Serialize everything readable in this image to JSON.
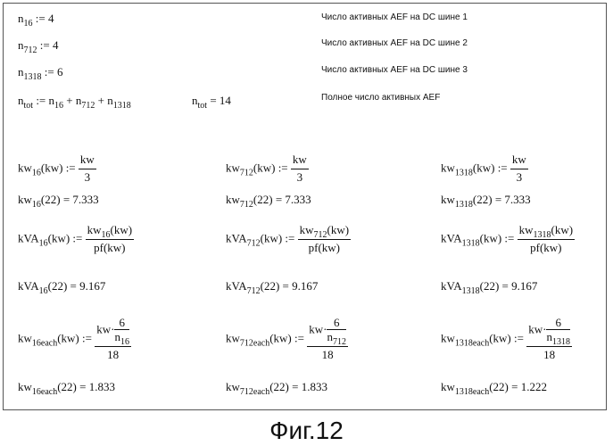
{
  "counts": {
    "n16": {
      "sym": "n",
      "sub": "16",
      "op": " := ",
      "val": "4",
      "note": "Число активных AEF на DC шине 1"
    },
    "n712": {
      "sym": "n",
      "sub": "712",
      "op": " := ",
      "val": "4",
      "note": "Число активных AEF на DC шине 2"
    },
    "n1318": {
      "sym": "n",
      "sub": "1318",
      "op": " := ",
      "val": "6",
      "note": "Число активных AEF на DC шине 3"
    },
    "ntot": {
      "sym": "n",
      "sub": "tot",
      "op": " := ",
      "t1": "n",
      "t1s": "16",
      "t2": "n",
      "t2s": "712",
      "t3": "n",
      "t3s": "1318",
      "plus": " + ",
      "res_sym": "n",
      "res_sub": "tot",
      "res_op": " = ",
      "res_val": "14",
      "note": "Полное число активных AEF"
    }
  },
  "common": {
    "kw": "kw",
    "arg": "(kw)",
    "def": " := ",
    "eq": " = ",
    "three": "3",
    "kva": "kVA",
    "pf": "pf(kw)",
    "call": "(22)",
    "six": "6",
    "eighteen": "18",
    "dot": "·",
    "n": "n",
    "each": "each"
  },
  "columns": [
    {
      "sub": "16",
      "kw_val": "7.333",
      "kva_val": "9.167",
      "each_val": "1.833"
    },
    {
      "sub": "712",
      "kw_val": "7.333",
      "kva_val": "9.167",
      "each_val": "1.833"
    },
    {
      "sub": "1318",
      "kw_val": "7.333",
      "kva_val": "9.167",
      "each_val": "1.222"
    }
  ],
  "caption": "Фиг.12"
}
